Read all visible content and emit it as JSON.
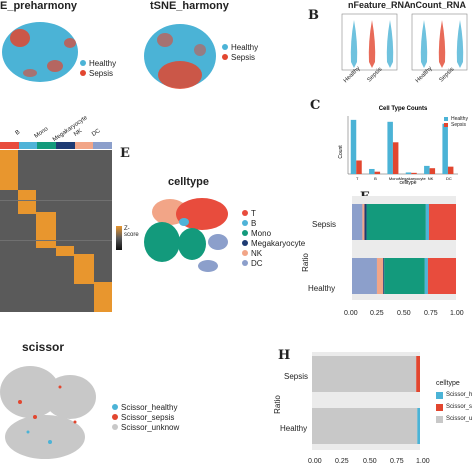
{
  "colors": {
    "healthy": "#4bb3d6",
    "sepsis": "#e2462f",
    "unknow": "#c8c8c8",
    "T": "#e84c3d",
    "B": "#4fb3d8",
    "Mono": "#139a7c",
    "Megakaryocyte": "#1e3b73",
    "NK": "#f2a587",
    "DC": "#8c9fcb"
  },
  "panels": {
    "A": {
      "title": "E_preharmony",
      "legend": [
        "Healthy",
        "Sepsis"
      ]
    },
    "A2": {
      "title": "tSNE_harmony",
      "legend": [
        "Healthy",
        "Sepsis"
      ]
    },
    "B": {
      "label": "B",
      "titles": [
        "nFeature_RNA",
        "nCount_RNA"
      ],
      "xticks": [
        "Healthy",
        "Sepsis"
      ]
    },
    "C": {
      "label": "C",
      "title": "Cell Type Counts",
      "legend": [
        "Healthy",
        "Sepsis"
      ],
      "ylabel": "Count",
      "xlabel": "celltype"
    },
    "D": {
      "header": [
        "B",
        "Mono",
        "Megakaryocyte",
        "NK",
        "DC"
      ],
      "legend_title": "Z-score"
    },
    "E": {
      "label": "E",
      "title": "celltype",
      "legend": [
        "T",
        "B",
        "Mono",
        "Megakaryocyte",
        "NK",
        "DC"
      ]
    },
    "F": {
      "label": "F",
      "ylabel": "Ratio",
      "categories": [
        "Sepsis",
        "Healthy"
      ],
      "xticks": [
        "0.00",
        "0.25",
        "0.50",
        "0.75",
        "1.00"
      ]
    },
    "G": {
      "title": "scissor",
      "legend": [
        "Scissor_healthy",
        "Scissor_sepsis",
        "Scissor_unknow"
      ]
    },
    "H": {
      "label": "H",
      "ylabel": "Ratio",
      "categories": [
        "Sepsis",
        "Healthy"
      ],
      "xticks": [
        "0.00",
        "0.25",
        "0.50",
        "0.75",
        "1.00"
      ],
      "legend_title": "celltype",
      "legend": [
        "Scissor_h",
        "Scissor_s",
        "Scissor_u"
      ]
    }
  },
  "chart_data": [
    {
      "type": "bar",
      "title": "Cell Type Counts",
      "categories": [
        "T",
        "B",
        "Mono",
        "Megakaryocyte",
        "NK",
        "DC"
      ],
      "series": [
        {
          "name": "Healthy",
          "values": [
            1400,
            130,
            1350,
            40,
            210,
            1300
          ]
        },
        {
          "name": "Sepsis",
          "values": [
            350,
            60,
            820,
            30,
            150,
            190
          ]
        }
      ],
      "xlabel": "celltype",
      "ylabel": "Count",
      "ylim": [
        0,
        1500
      ]
    },
    {
      "type": "bar",
      "stacked": "horizontal",
      "categories": [
        "Sepsis",
        "Healthy"
      ],
      "segments": [
        "DC",
        "NK",
        "Megakaryocyte",
        "Mono",
        "B",
        "T"
      ],
      "values": {
        "Sepsis": [
          0.1,
          0.02,
          0.02,
          0.57,
          0.03,
          0.26
        ],
        "Healthy": [
          0.24,
          0.06,
          0.01,
          0.39,
          0.03,
          0.27
        ]
      },
      "ylabel": "Ratio",
      "xlim": [
        0,
        1
      ]
    },
    {
      "type": "bar",
      "stacked": "horizontal",
      "categories": [
        "Sepsis",
        "Healthy"
      ],
      "segments": [
        "Scissor_u",
        "Scissor_s",
        "Scissor_h"
      ],
      "values": {
        "Sepsis": [
          0.965,
          0.035,
          0.0
        ],
        "Healthy": [
          0.975,
          0.0,
          0.025
        ]
      },
      "ylabel": "Ratio",
      "xlim": [
        0,
        1
      ]
    }
  ]
}
